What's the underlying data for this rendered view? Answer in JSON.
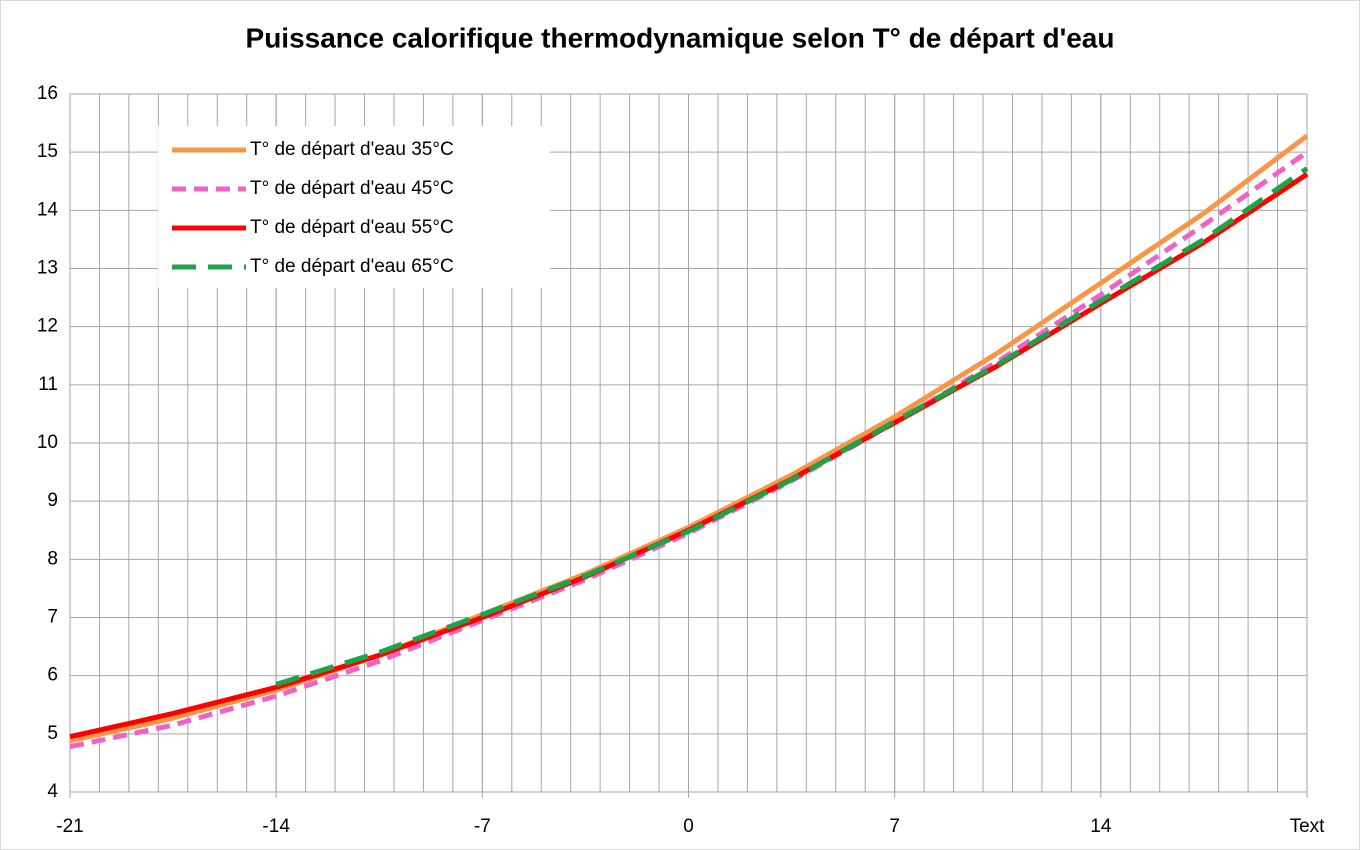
{
  "chart_data": {
    "type": "line",
    "title": "Puissance calorifique thermodynamique selon T° de départ d'eau",
    "x": [
      -21,
      -17.5,
      -14,
      -10.5,
      -7,
      -3.5,
      0,
      3.5,
      7,
      10.5,
      14,
      17.5,
      21
    ],
    "series": [
      {
        "name": "T° de départ d'eau 35°C",
        "color": "#f79646",
        "style": "solid",
        "values": [
          4.88,
          5.27,
          5.75,
          6.35,
          7.05,
          7.75,
          8.55,
          9.45,
          10.45,
          11.55,
          12.75,
          13.95,
          15.28
        ]
      },
      {
        "name": "T° de départ d'eau 45°C",
        "color": "#f062c8",
        "style": "dash",
        "values": [
          4.78,
          5.15,
          5.65,
          6.25,
          6.95,
          7.65,
          8.45,
          9.35,
          10.35,
          11.4,
          12.55,
          13.75,
          15.0
        ]
      },
      {
        "name": "T° de départ d'eau 55°C",
        "color": "#ff0000",
        "style": "solid",
        "values": [
          4.95,
          5.35,
          5.8,
          6.35,
          7.0,
          7.7,
          8.5,
          9.38,
          10.35,
          11.33,
          12.4,
          13.45,
          14.62
        ]
      },
      {
        "name": "T° de départ d'eau 65°C",
        "color": "#1fa34a",
        "style": "longdash",
        "values": [
          null,
          null,
          5.85,
          6.4,
          7.05,
          7.72,
          8.48,
          9.37,
          10.37,
          11.35,
          12.45,
          13.5,
          14.72
        ]
      }
    ],
    "xlim": [
      -21,
      21
    ],
    "xticks": [
      -21,
      -14,
      -7,
      0,
      7,
      14,
      {
        "value": 21,
        "label": "Text"
      }
    ],
    "x_minor_step": 1,
    "ylim": [
      4,
      16
    ],
    "yticks": [
      4,
      5,
      6,
      7,
      8,
      9,
      10,
      11,
      12,
      13,
      14,
      15,
      16
    ],
    "grid": true,
    "legend": "upper-left"
  }
}
